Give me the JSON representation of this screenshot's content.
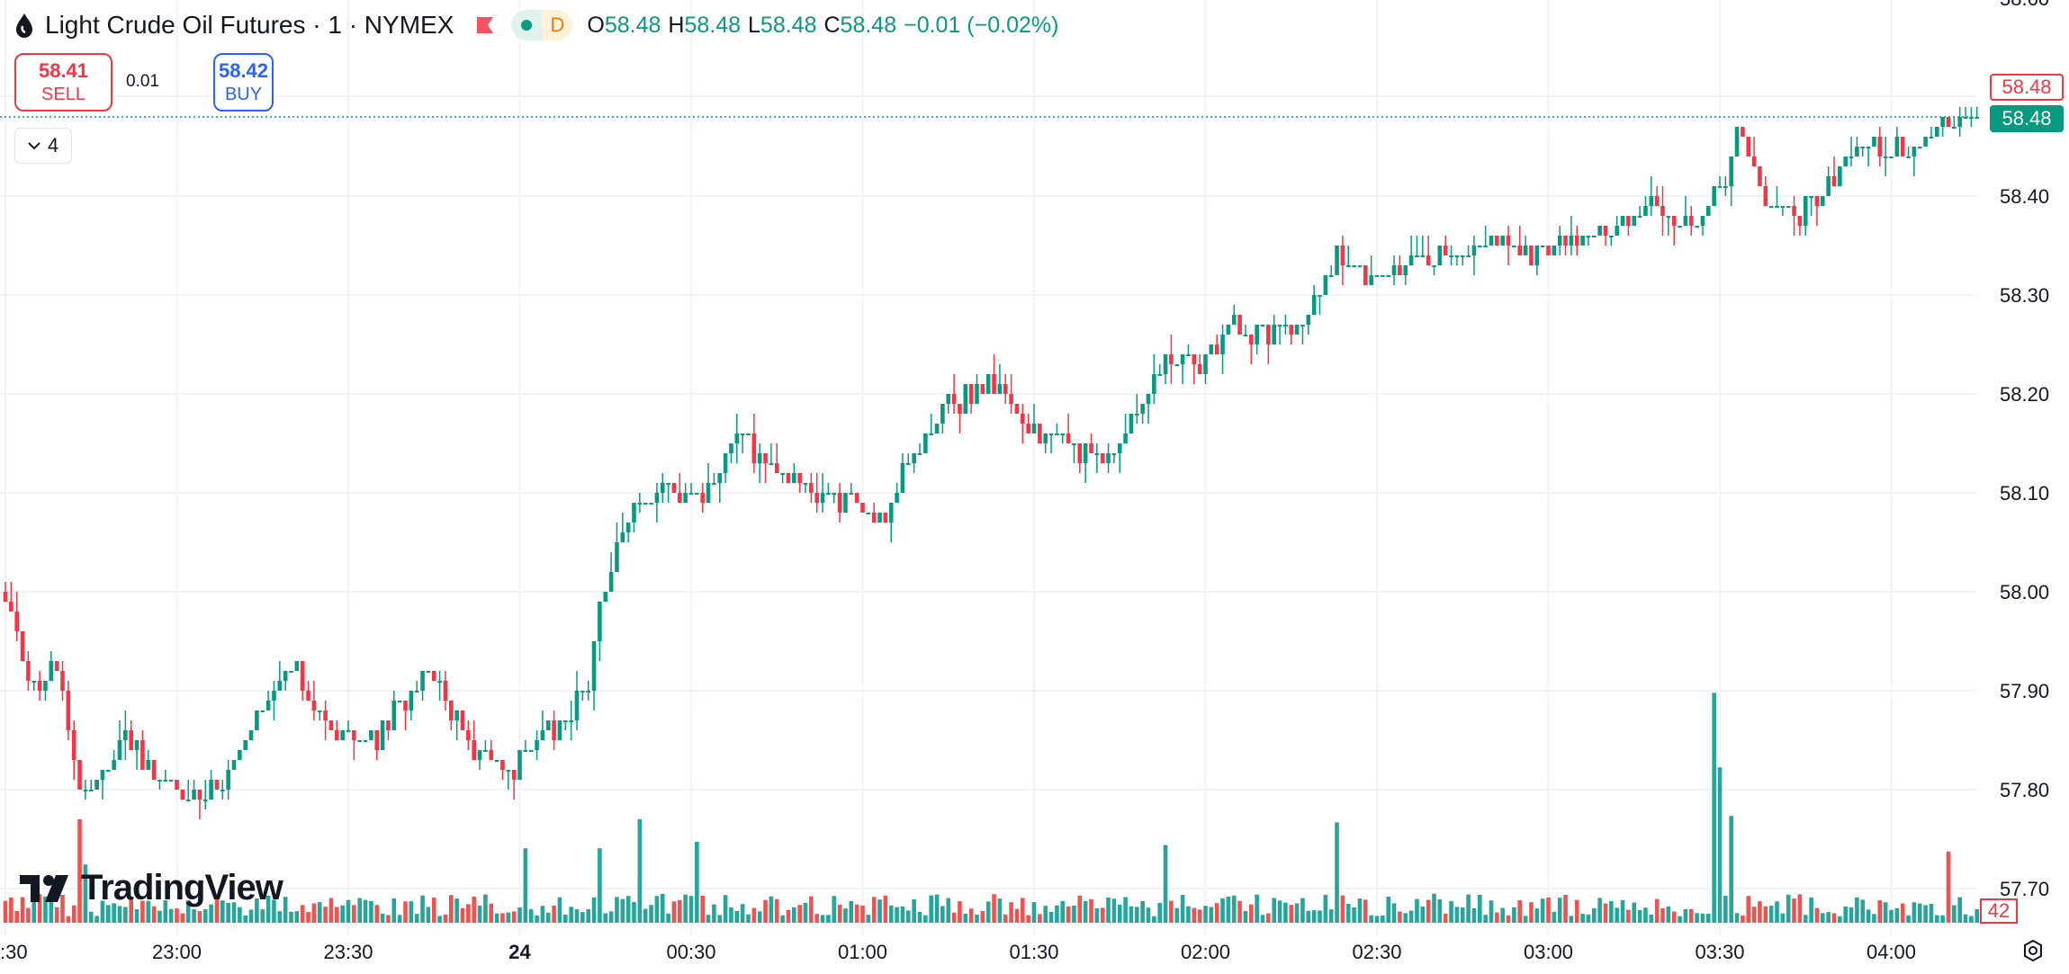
{
  "header": {
    "title": "Light Crude Oil Futures · 1 · NYMEX",
    "market_status": "D",
    "ohlc": {
      "o_label": "O",
      "o": "58.48",
      "h_label": "H",
      "h": "58.48",
      "l_label": "L",
      "l": "58.48",
      "c_label": "C",
      "c": "58.48",
      "change": "−0.01 (−0.02%)"
    }
  },
  "trade": {
    "sell_price": "58.41",
    "sell_label": "SELL",
    "spread": "0.01",
    "buy_price": "58.42",
    "buy_label": "BUY"
  },
  "indicators_toggle": {
    "count": "4"
  },
  "logo": "TradingView",
  "price_labels": {
    "ask": "58.48",
    "last": "58.48",
    "volume": "42"
  },
  "colors": {
    "up": "#089981",
    "down": "#f23645",
    "vol_up": "#26a69a",
    "vol_down": "#ef5350",
    "grid": "#f0f3fa"
  },
  "chart_data": {
    "type": "candlestick",
    "title": "Light Crude Oil Futures · 1 · NYMEX",
    "interval_minutes": 1,
    "ylim": [
      57.68,
      58.6
    ],
    "y_ticks": [
      "58.60",
      "58.40",
      "58.30",
      "58.20",
      "58.10",
      "58.00",
      "57.90",
      "57.80",
      "57.70"
    ],
    "x_ticks": [
      {
        "t": 0,
        "label": ":30"
      },
      {
        "t": 30,
        "label": "23:00"
      },
      {
        "t": 60,
        "label": "23:30"
      },
      {
        "t": 90,
        "label": "24"
      },
      {
        "t": 120,
        "label": "00:30"
      },
      {
        "t": 150,
        "label": "01:00"
      },
      {
        "t": 180,
        "label": "01:30"
      },
      {
        "t": 210,
        "label": "02:00"
      },
      {
        "t": 240,
        "label": "02:30"
      },
      {
        "t": 270,
        "label": "03:00"
      },
      {
        "t": 300,
        "label": "03:30"
      },
      {
        "t": 330,
        "label": "04:00"
      }
    ],
    "close_keypoints": [
      [
        0,
        57.99
      ],
      [
        5,
        57.9
      ],
      [
        9,
        57.93
      ],
      [
        13,
        57.8
      ],
      [
        15,
        57.8
      ],
      [
        21,
        57.85
      ],
      [
        30,
        57.8
      ],
      [
        37,
        57.8
      ],
      [
        44,
        57.87
      ],
      [
        51,
        57.92
      ],
      [
        58,
        57.86
      ],
      [
        65,
        57.85
      ],
      [
        74,
        57.93
      ],
      [
        81,
        57.85
      ],
      [
        88,
        57.81
      ],
      [
        95,
        57.86
      ],
      [
        102,
        57.9
      ],
      [
        104,
        57.99
      ],
      [
        110,
        58.09
      ],
      [
        115,
        58.1
      ],
      [
        122,
        58.09
      ],
      [
        128,
        58.16
      ],
      [
        134,
        58.12
      ],
      [
        141,
        58.1
      ],
      [
        148,
        58.09
      ],
      [
        154,
        58.08
      ],
      [
        159,
        58.14
      ],
      [
        165,
        58.19
      ],
      [
        172,
        58.21
      ],
      [
        178,
        58.17
      ],
      [
        185,
        58.15
      ],
      [
        193,
        58.13
      ],
      [
        199,
        58.2
      ],
      [
        204,
        58.24
      ],
      [
        210,
        58.23
      ],
      [
        214,
        58.27
      ],
      [
        219,
        58.26
      ],
      [
        227,
        58.27
      ],
      [
        233,
        58.34
      ],
      [
        239,
        58.31
      ],
      [
        245,
        58.33
      ],
      [
        252,
        58.34
      ],
      [
        259,
        58.36
      ],
      [
        266,
        58.34
      ],
      [
        273,
        58.35
      ],
      [
        281,
        58.36
      ],
      [
        289,
        58.39
      ],
      [
        296,
        58.36
      ],
      [
        300,
        58.41
      ],
      [
        304,
        58.47
      ],
      [
        307,
        58.4
      ],
      [
        313,
        58.38
      ],
      [
        319,
        58.41
      ],
      [
        324,
        58.45
      ],
      [
        333,
        58.45
      ],
      [
        339,
        58.47
      ],
      [
        345,
        58.48
      ]
    ],
    "volume_spikes": [
      [
        13,
        320
      ],
      [
        14,
        180
      ],
      [
        91,
        230
      ],
      [
        104,
        230
      ],
      [
        111,
        320
      ],
      [
        121,
        250
      ],
      [
        203,
        240
      ],
      [
        233,
        310
      ],
      [
        299,
        710
      ],
      [
        300,
        480
      ],
      [
        302,
        330
      ],
      [
        340,
        220
      ]
    ],
    "last_volume": 42
  }
}
